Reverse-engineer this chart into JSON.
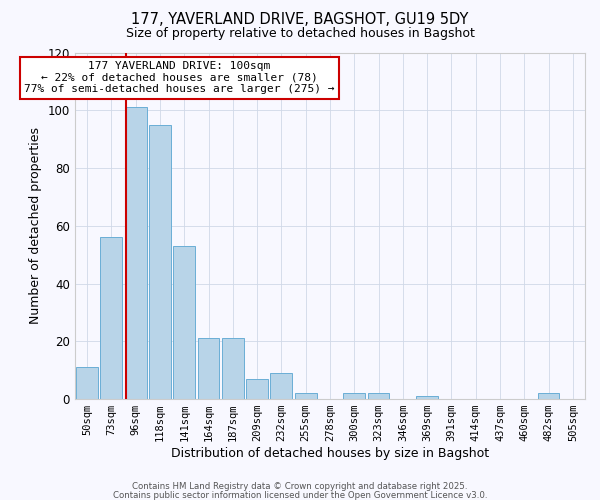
{
  "title": "177, YAVERLAND DRIVE, BAGSHOT, GU19 5DY",
  "subtitle": "Size of property relative to detached houses in Bagshot",
  "xlabel": "Distribution of detached houses by size in Bagshot",
  "ylabel": "Number of detached properties",
  "bin_labels": [
    "50sqm",
    "73sqm",
    "96sqm",
    "118sqm",
    "141sqm",
    "164sqm",
    "187sqm",
    "209sqm",
    "232sqm",
    "255sqm",
    "278sqm",
    "300sqm",
    "323sqm",
    "346sqm",
    "369sqm",
    "391sqm",
    "414sqm",
    "437sqm",
    "460sqm",
    "482sqm",
    "505sqm"
  ],
  "bar_values": [
    11,
    56,
    101,
    95,
    53,
    21,
    21,
    7,
    9,
    2,
    0,
    2,
    2,
    0,
    1,
    0,
    0,
    0,
    0,
    2,
    0
  ],
  "bar_color": "#b8d4e8",
  "bar_edge_color": "#6aaed6",
  "vline_color": "#cc0000",
  "vline_index": 2,
  "ylim": [
    0,
    120
  ],
  "yticks": [
    0,
    20,
    40,
    60,
    80,
    100,
    120
  ],
  "annotation_text": "177 YAVERLAND DRIVE: 100sqm\n← 22% of detached houses are smaller (78)\n77% of semi-detached houses are larger (275) →",
  "annotation_box_color": "#ffffff",
  "annotation_box_edge": "#cc0000",
  "footer_line1": "Contains HM Land Registry data © Crown copyright and database right 2025.",
  "footer_line2": "Contains public sector information licensed under the Open Government Licence v3.0.",
  "background_color": "#f8f8ff",
  "grid_color": "#d0d8e8",
  "title_fontsize": 10.5,
  "subtitle_fontsize": 9
}
